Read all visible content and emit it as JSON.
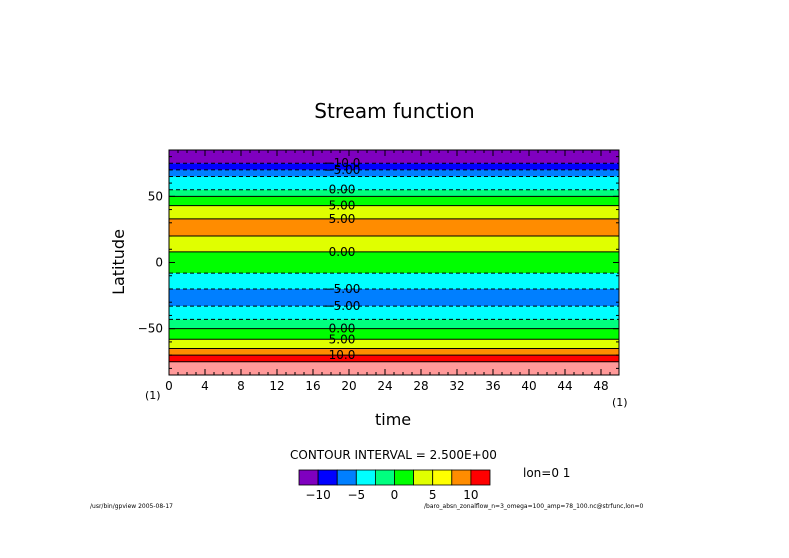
{
  "chart_data": {
    "type": "heatmap",
    "title": "Stream function",
    "xlabel": "time",
    "ylabel": "Latitude",
    "xlim": [
      0,
      50
    ],
    "ylim": [
      -85,
      85
    ],
    "x_ticks": [
      0,
      4,
      8,
      12,
      16,
      20,
      24,
      28,
      32,
      36,
      40,
      44,
      48
    ],
    "y_ticks": [
      -50,
      0,
      50
    ],
    "y_tick_labels": [
      "−50",
      "0",
      "50"
    ],
    "x_start_index": "(1)",
    "x_end_index": "(1)",
    "color_levels": [
      -12.5,
      -10,
      -7.5,
      -5,
      -2.5,
      0,
      2.5,
      5,
      7.5,
      10,
      12.5
    ],
    "colors": [
      "#7f00bf",
      "#0000ff",
      "#007fff",
      "#00ffff",
      "#00ff7f",
      "#00ff00",
      "#e0ff00",
      "#ffff00",
      "#ff8c00",
      "#ff0000",
      "#ff9999"
    ],
    "bands": [
      {
        "y0": 75,
        "y1": 85,
        "color": "#7f00bf"
      },
      {
        "y0": 70,
        "y1": 75,
        "color": "#0000ff"
      },
      {
        "y0": 65,
        "y1": 70,
        "color": "#007fff"
      },
      {
        "y0": 55,
        "y1": 65,
        "color": "#00ffff"
      },
      {
        "y0": 50,
        "y1": 55,
        "color": "#00ff7f"
      },
      {
        "y0": 43,
        "y1": 50,
        "color": "#00ff00"
      },
      {
        "y0": 33,
        "y1": 43,
        "color": "#e0ff00"
      },
      {
        "y0": 20,
        "y1": 33,
        "color": "#ff8c00"
      },
      {
        "y0": 8,
        "y1": 20,
        "color": "#e0ff00"
      },
      {
        "y0": -8,
        "y1": 8,
        "color": "#00ff00"
      },
      {
        "y0": -20,
        "y1": -8,
        "color": "#00ffff"
      },
      {
        "y0": -33,
        "y1": -20,
        "color": "#007fff"
      },
      {
        "y0": -43,
        "y1": -33,
        "color": "#00ffff"
      },
      {
        "y0": -50,
        "y1": -43,
        "color": "#00ff7f"
      },
      {
        "y0": -58,
        "y1": -50,
        "color": "#00ff00"
      },
      {
        "y0": -65,
        "y1": -58,
        "color": "#e0ff00"
      },
      {
        "y0": -70,
        "y1": -65,
        "color": "#ff8c00"
      },
      {
        "y0": -75,
        "y1": -70,
        "color": "#ff0000"
      },
      {
        "y0": -85,
        "y1": -75,
        "color": "#ff9999"
      }
    ],
    "contours": [
      {
        "y": 75,
        "dashed": true,
        "label": "−10.0"
      },
      {
        "y": 70,
        "dashed": true,
        "label": "−5.00"
      },
      {
        "y": 65,
        "dashed": true,
        "label": ""
      },
      {
        "y": 55,
        "dashed": true,
        "label": "0.00"
      },
      {
        "y": 50,
        "dashed": false,
        "label": ""
      },
      {
        "y": 43,
        "dashed": false,
        "label": "5.00"
      },
      {
        "y": 33,
        "dashed": false,
        "label": "5.00"
      },
      {
        "y": 20,
        "dashed": false,
        "label": ""
      },
      {
        "y": 8,
        "dashed": false,
        "label": "0.00"
      },
      {
        "y": -8,
        "dashed": true,
        "label": ""
      },
      {
        "y": -20,
        "dashed": true,
        "label": "−5.00"
      },
      {
        "y": -33,
        "dashed": true,
        "label": "−5.00"
      },
      {
        "y": -43,
        "dashed": true,
        "label": ""
      },
      {
        "y": -50,
        "dashed": false,
        "label": "0.00"
      },
      {
        "y": -58,
        "dashed": false,
        "label": "5.00"
      },
      {
        "y": -65,
        "dashed": false,
        "label": ""
      },
      {
        "y": -70,
        "dashed": false,
        "label": "10.0"
      },
      {
        "y": -75,
        "dashed": false,
        "label": ""
      }
    ],
    "colorbar_tick_labels": [
      "−10",
      "−5",
      "0",
      "5",
      "10"
    ],
    "colorbar_tick_values": [
      -10,
      -5,
      0,
      5,
      10
    ]
  },
  "annotations": {
    "contour_interval": "CONTOUR INTERVAL = 2.500E+00",
    "lon": "lon=0 1",
    "footer_left": "/usr/bin/gpview  2005-08-17",
    "footer_right": "/baro_absn_zonalflow_n=3_omega=100_amp=78_100.nc@strfunc,lon=0"
  }
}
